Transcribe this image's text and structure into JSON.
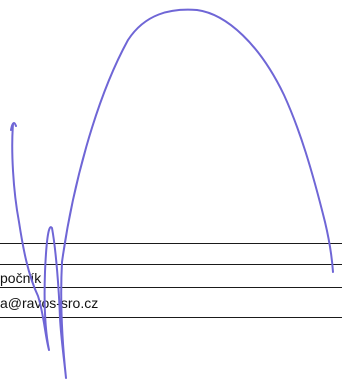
{
  "form": {
    "name_value": "počník",
    "email_value": "a@ravos-sro.cz"
  },
  "signature": {
    "ink_color": "#6f66d6"
  }
}
